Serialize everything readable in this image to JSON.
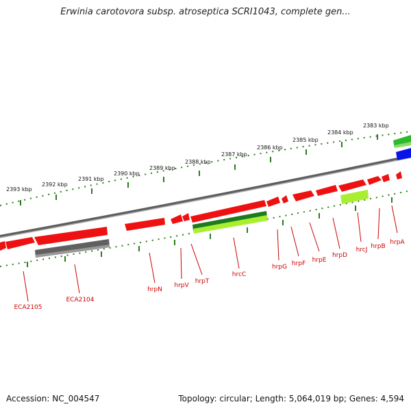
{
  "header": {
    "title": "Erwinia carotovora subsp. atroseptica SCRI1043, complete gen..."
  },
  "footer": {
    "accession": "Accession: NC_004547",
    "summary": "Topology: circular; Length: 5,064,019 bp; Genes: 4,594"
  },
  "scale": {
    "ticks": [
      "2393 kbp",
      "2392 kbp",
      "2391 kbp",
      "2390 kbp",
      "2389 kbp",
      "2388 kbp",
      "2387 kbp",
      "2386 kbp",
      "2385 kbp",
      "2384 kbp",
      "2383 kbp"
    ]
  },
  "genes": {
    "labels": [
      "ECA2105",
      "ECA2104",
      "hrpN",
      "hrpV",
      "hrpT",
      "hrcC",
      "hrpG",
      "hrpF",
      "hrpE",
      "hrpD",
      "hrcJ",
      "hrpB",
      "hrpA"
    ]
  },
  "colors": {
    "gene": "#ee1111",
    "gene_shade": "#ff7070",
    "backbone": "#7a7a7a",
    "pseudo_gene": "#606060",
    "green_dark": "#1e7a1e",
    "green_light": "#aaee33",
    "blue": "#0a14e6",
    "green_top": "#2db82d",
    "tick": "#2a7a1a"
  }
}
